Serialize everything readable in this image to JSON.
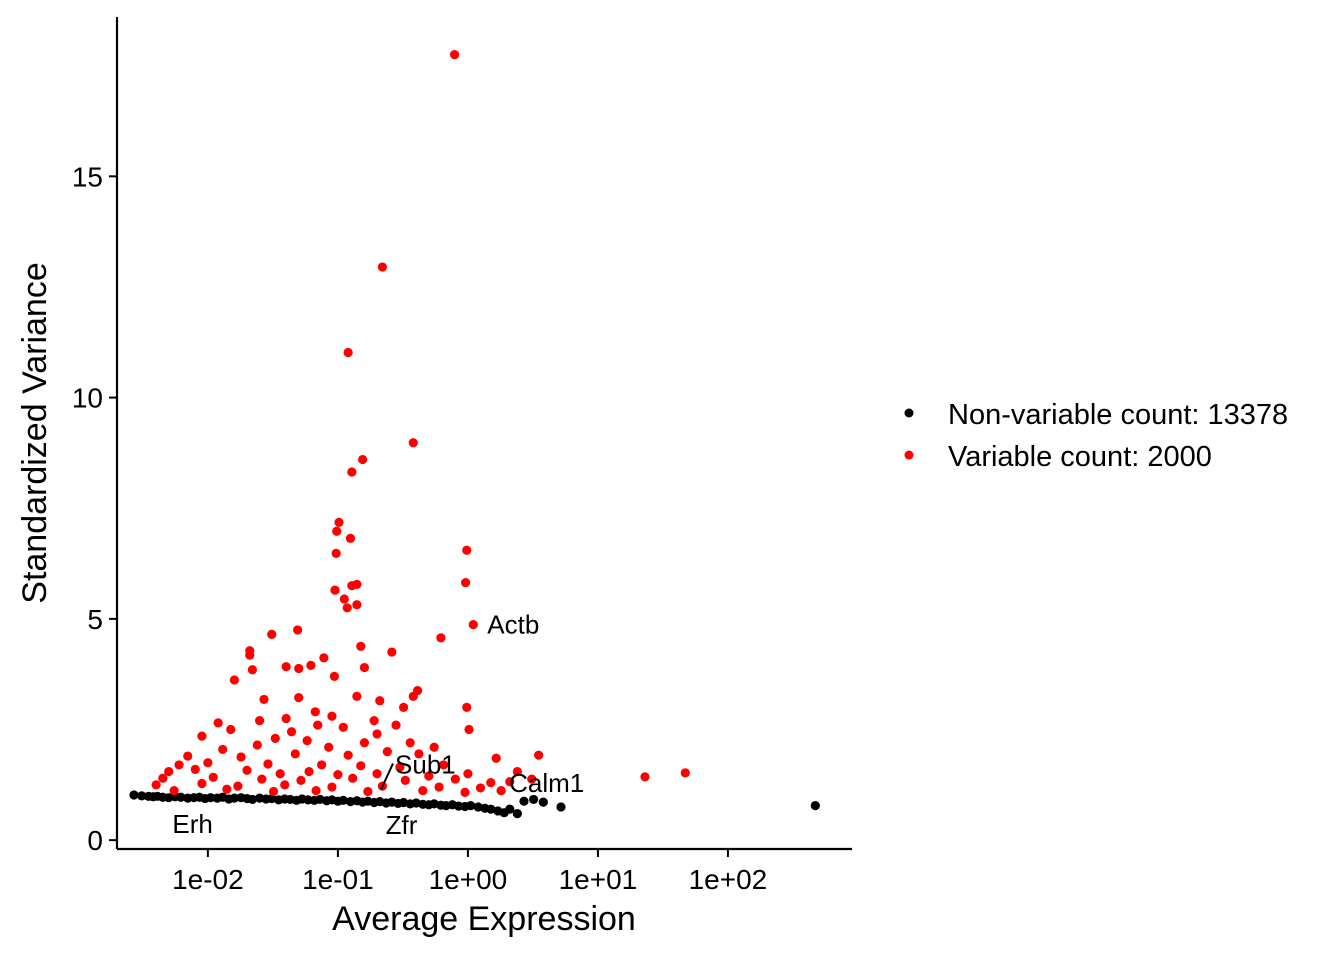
{
  "chart_data": {
    "type": "scatter",
    "xscale": "log10",
    "xlabel": "Average Expression",
    "ylabel": "Standardized Variance",
    "xlim": [
      0.002,
      900
    ],
    "ylim": [
      -0.2,
      18.6
    ],
    "x_ticks": [
      0.01,
      0.1,
      1,
      10,
      100
    ],
    "x_tick_labels": [
      "1e-02",
      "1e-01",
      "1e+00",
      "1e+01",
      "1e+02"
    ],
    "y_ticks": [
      0,
      5,
      10,
      15
    ],
    "y_tick_labels": [
      "0",
      "5",
      "10",
      "15"
    ],
    "grid": false,
    "legend_position": "right",
    "series": [
      {
        "name": "Non-variable count: 13378",
        "color": "#000000",
        "points": [
          [
            0.0027,
            1.02
          ],
          [
            0.0031,
            1.0
          ],
          [
            0.0035,
            0.99
          ],
          [
            0.0038,
            0.98
          ],
          [
            0.0041,
            0.99
          ],
          [
            0.0045,
            0.97
          ],
          [
            0.005,
            0.96
          ],
          [
            0.0056,
            0.98
          ],
          [
            0.0062,
            0.97
          ],
          [
            0.007,
            0.95
          ],
          [
            0.0078,
            0.96
          ],
          [
            0.0086,
            0.97
          ],
          [
            0.0095,
            0.94
          ],
          [
            0.0105,
            0.96
          ],
          [
            0.0118,
            0.95
          ],
          [
            0.013,
            0.97
          ],
          [
            0.0145,
            0.93
          ],
          [
            0.016,
            0.95
          ],
          [
            0.018,
            0.96
          ],
          [
            0.02,
            0.94
          ],
          [
            0.022,
            0.92
          ],
          [
            0.025,
            0.95
          ],
          [
            0.028,
            0.93
          ],
          [
            0.031,
            0.94
          ],
          [
            0.035,
            0.91
          ],
          [
            0.039,
            0.93
          ],
          [
            0.043,
            0.92
          ],
          [
            0.048,
            0.9
          ],
          [
            0.053,
            0.93
          ],
          [
            0.059,
            0.91
          ],
          [
            0.066,
            0.9
          ],
          [
            0.073,
            0.92
          ],
          [
            0.082,
            0.89
          ],
          [
            0.09,
            0.91
          ],
          [
            0.1,
            0.88
          ],
          [
            0.11,
            0.9
          ],
          [
            0.125,
            0.87
          ],
          [
            0.14,
            0.89
          ],
          [
            0.155,
            0.86
          ],
          [
            0.17,
            0.88
          ],
          [
            0.19,
            0.85
          ],
          [
            0.21,
            0.87
          ],
          [
            0.235,
            0.84
          ],
          [
            0.26,
            0.86
          ],
          [
            0.29,
            0.83
          ],
          [
            0.32,
            0.85
          ],
          [
            0.36,
            0.82
          ],
          [
            0.4,
            0.84
          ],
          [
            0.45,
            0.81
          ],
          [
            0.5,
            0.8
          ],
          [
            0.55,
            0.82
          ],
          [
            0.62,
            0.79
          ],
          [
            0.68,
            0.78
          ],
          [
            0.76,
            0.8
          ],
          [
            0.85,
            0.77
          ],
          [
            0.95,
            0.76
          ],
          [
            1.05,
            0.78
          ],
          [
            1.2,
            0.75
          ],
          [
            1.35,
            0.72
          ],
          [
            1.5,
            0.7
          ],
          [
            1.7,
            0.66
          ],
          [
            1.9,
            0.62
          ],
          [
            2.1,
            0.7
          ],
          [
            2.4,
            0.6
          ],
          [
            2.7,
            0.88
          ],
          [
            3.2,
            0.92
          ],
          [
            3.8,
            0.86
          ],
          [
            5.2,
            0.75
          ],
          [
            470,
            0.78
          ]
        ]
      },
      {
        "name": "Variable count: 2000",
        "color": "#ff0000",
        "points": [
          [
            0.79,
            17.75
          ],
          [
            0.22,
            12.95
          ],
          [
            0.12,
            11.02
          ],
          [
            0.38,
            8.98
          ],
          [
            0.155,
            8.6
          ],
          [
            0.128,
            8.32
          ],
          [
            0.102,
            7.18
          ],
          [
            0.098,
            6.98
          ],
          [
            0.125,
            6.82
          ],
          [
            0.097,
            6.48
          ],
          [
            0.98,
            6.55
          ],
          [
            0.96,
            5.82
          ],
          [
            0.14,
            5.78
          ],
          [
            0.128,
            5.75
          ],
          [
            0.095,
            5.65
          ],
          [
            0.112,
            5.45
          ],
          [
            0.14,
            5.32
          ],
          [
            0.118,
            5.25
          ],
          [
            1.1,
            4.87
          ],
          [
            0.049,
            4.75
          ],
          [
            0.62,
            4.57
          ],
          [
            0.031,
            4.65
          ],
          [
            0.021,
            4.28
          ],
          [
            0.15,
            4.38
          ],
          [
            0.26,
            4.25
          ],
          [
            0.021,
            4.18
          ],
          [
            0.078,
            4.12
          ],
          [
            0.062,
            3.95
          ],
          [
            0.04,
            3.92
          ],
          [
            0.05,
            3.88
          ],
          [
            0.022,
            3.85
          ],
          [
            0.16,
            3.9
          ],
          [
            0.094,
            3.7
          ],
          [
            0.016,
            3.62
          ],
          [
            0.41,
            3.38
          ],
          [
            0.38,
            3.25
          ],
          [
            0.98,
            3.0
          ],
          [
            1.02,
            2.5
          ],
          [
            0.21,
            3.15
          ],
          [
            0.05,
            3.22
          ],
          [
            0.14,
            3.25
          ],
          [
            0.027,
            3.18
          ],
          [
            0.32,
            3.0
          ],
          [
            0.067,
            2.9
          ],
          [
            0.09,
            2.8
          ],
          [
            0.04,
            2.75
          ],
          [
            0.025,
            2.7
          ],
          [
            0.19,
            2.7
          ],
          [
            0.012,
            2.65
          ],
          [
            0.07,
            2.6
          ],
          [
            0.28,
            2.6
          ],
          [
            0.015,
            2.5
          ],
          [
            0.11,
            2.55
          ],
          [
            0.044,
            2.45
          ],
          [
            0.2,
            2.4
          ],
          [
            0.009,
            2.35
          ],
          [
            0.033,
            2.3
          ],
          [
            0.058,
            2.25
          ],
          [
            0.16,
            2.2
          ],
          [
            0.36,
            2.2
          ],
          [
            0.024,
            2.15
          ],
          [
            0.085,
            2.1
          ],
          [
            0.013,
            2.05
          ],
          [
            0.24,
            2.0
          ],
          [
            0.55,
            2.1
          ],
          [
            0.047,
            1.95
          ],
          [
            0.007,
            1.9
          ],
          [
            0.018,
            1.88
          ],
          [
            0.12,
            1.92
          ],
          [
            0.42,
            1.95
          ],
          [
            1.65,
            1.85
          ],
          [
            3.5,
            1.92
          ],
          [
            0.006,
            1.7
          ],
          [
            0.01,
            1.75
          ],
          [
            0.029,
            1.72
          ],
          [
            0.075,
            1.7
          ],
          [
            0.15,
            1.68
          ],
          [
            0.3,
            1.65
          ],
          [
            0.65,
            1.7
          ],
          [
            0.005,
            1.55
          ],
          [
            0.008,
            1.6
          ],
          [
            0.02,
            1.58
          ],
          [
            0.036,
            1.5
          ],
          [
            0.06,
            1.55
          ],
          [
            0.1,
            1.48
          ],
          [
            0.2,
            1.5
          ],
          [
            0.5,
            1.45
          ],
          [
            1.0,
            1.5
          ],
          [
            2.4,
            1.55
          ],
          [
            0.0045,
            1.4
          ],
          [
            0.011,
            1.42
          ],
          [
            0.026,
            1.38
          ],
          [
            0.052,
            1.35
          ],
          [
            0.13,
            1.4
          ],
          [
            0.33,
            1.35
          ],
          [
            0.8,
            1.38
          ],
          [
            1.5,
            1.3
          ],
          [
            3.1,
            1.38
          ],
          [
            23.0,
            1.43
          ],
          [
            47.0,
            1.52
          ],
          [
            0.004,
            1.25
          ],
          [
            0.009,
            1.28
          ],
          [
            0.017,
            1.22
          ],
          [
            0.039,
            1.25
          ],
          [
            0.09,
            1.2
          ],
          [
            0.22,
            1.22
          ],
          [
            0.6,
            1.2
          ],
          [
            1.25,
            1.18
          ],
          [
            2.1,
            1.32
          ],
          [
            0.0055,
            1.12
          ],
          [
            0.014,
            1.15
          ],
          [
            0.032,
            1.1
          ],
          [
            0.068,
            1.12
          ],
          [
            0.17,
            1.1
          ],
          [
            0.45,
            1.12
          ],
          [
            0.95,
            1.08
          ],
          [
            1.8,
            1.12
          ]
        ]
      }
    ],
    "annotations": [
      {
        "text": "Actb",
        "x": 1.1,
        "y": 4.87
      },
      {
        "text": "Sub1",
        "x": 0.2,
        "y": 1.1
      },
      {
        "text": "Calm1",
        "x": 1.8,
        "y": 0.95
      },
      {
        "text": "Zfr",
        "x": 0.25,
        "y": 0.7
      },
      {
        "text": "Erh",
        "x": 0.0048,
        "y": 0.95
      }
    ]
  }
}
